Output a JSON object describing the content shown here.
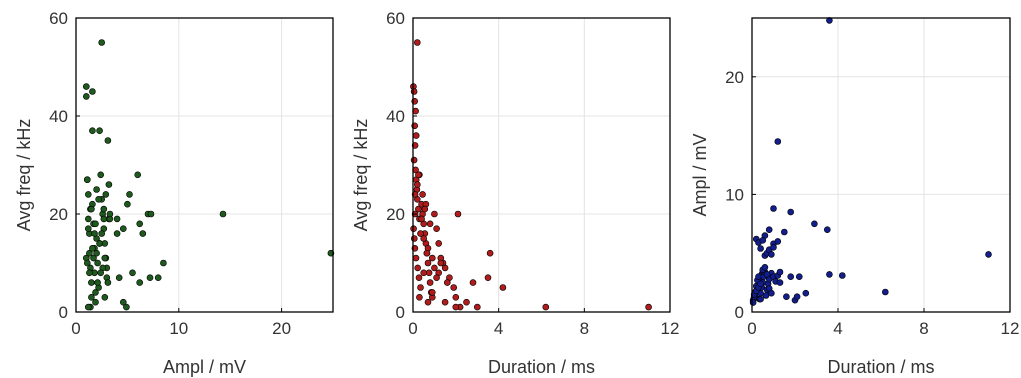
{
  "chart_data": [
    {
      "type": "scatter",
      "xlabel": "Ampl / mV",
      "ylabel": "Avg freq / kHz",
      "xlim": [
        0,
        25
      ],
      "ylim": [
        0,
        60
      ],
      "xticks": [
        0,
        10,
        20
      ],
      "yticks": [
        0,
        20,
        40,
        60
      ],
      "grid": true,
      "color": "#1e5a1e",
      "x": [
        1.0,
        1.0,
        1.1,
        1.2,
        1.2,
        1.3,
        1.3,
        1.4,
        1.5,
        1.5,
        1.6,
        1.6,
        1.7,
        1.8,
        1.8,
        1.9,
        2.0,
        2.0,
        2.1,
        2.2,
        2.3,
        2.4,
        2.5,
        2.6,
        2.7,
        2.8,
        2.9,
        3.0,
        3.1,
        3.2,
        1.1,
        1.4,
        1.9,
        2.3,
        2.7,
        3.0,
        3.3,
        1.2,
        1.7,
        2.1,
        2.6,
        2.9,
        3.3,
        1.0,
        1.5,
        2.0,
        2.4,
        2.8,
        1.3,
        1.8,
        2.2,
        2.7,
        3.2,
        1.6,
        2.5,
        1.1,
        1.9,
        2.8,
        1.4,
        2.3,
        3.1,
        4.0,
        4.2,
        4.6,
        5.0,
        5.2,
        5.5,
        6.0,
        6.2,
        6.5,
        7.0,
        7.2,
        7.3,
        8.0,
        8.5,
        4.6,
        1.2,
        1.6,
        2.5,
        14.3,
        24.8,
        4.9,
        6.2,
        4.0
      ],
      "y": [
        46,
        44,
        27,
        24,
        19,
        16,
        12,
        9,
        6,
        3,
        37,
        22,
        18,
        13,
        8,
        2,
        25,
        15,
        10,
        5,
        37,
        28,
        23,
        20,
        17,
        14,
        11,
        7,
        35,
        19,
        27,
        21,
        18,
        14,
        21,
        9,
        19,
        17,
        11,
        6,
        9,
        24,
        20,
        11,
        21,
        12,
        8,
        3,
        8,
        16,
        23,
        19,
        26,
        13,
        16,
        10,
        4,
        11,
        1,
        14,
        6,
        19,
        7,
        17,
        22,
        24,
        8,
        28,
        18,
        16,
        20,
        7,
        20,
        7,
        10,
        2,
        1,
        45,
        55,
        20,
        12,
        1,
        6,
        16
      ]
    },
    {
      "type": "scatter",
      "xlabel": "Duration / ms",
      "ylabel": "Avg freq / kHz",
      "xlim": [
        0,
        12
      ],
      "ylim": [
        0,
        60
      ],
      "xticks": [
        0,
        4,
        8,
        12
      ],
      "yticks": [
        0,
        20,
        40,
        60
      ],
      "grid": true,
      "color": "#b01c1c",
      "x": [
        0.02,
        0.05,
        0.08,
        0.1,
        0.12,
        0.15,
        0.18,
        0.2,
        0.25,
        0.3,
        0.03,
        0.06,
        0.09,
        0.14,
        0.22,
        0.28,
        0.35,
        0.4,
        0.45,
        0.5,
        0.55,
        0.6,
        0.65,
        0.7,
        0.75,
        0.8,
        0.85,
        0.9,
        1.0,
        1.1,
        1.2,
        1.3,
        1.5,
        1.7,
        1.9,
        2.0,
        2.1,
        2.2,
        2.5,
        2.8,
        3.0,
        3.5,
        3.6,
        4.2,
        0.1,
        0.2,
        0.3,
        0.4,
        0.5,
        0.6,
        0.7,
        0.8,
        0.9,
        1.0,
        1.2,
        1.4,
        1.6,
        0.05,
        0.15,
        0.25,
        0.35,
        0.45,
        0.55,
        0.65,
        0.3,
        0.5,
        0.7,
        0.9,
        1.1,
        1.3,
        1.5,
        2.0,
        6.2,
        11.0,
        0.2,
        0.12,
        0.08,
        0.1
      ],
      "y": [
        46,
        45,
        38,
        34,
        29,
        27,
        25,
        23,
        21,
        19,
        17,
        15,
        13,
        11,
        9,
        7,
        5,
        22,
        20,
        18,
        16,
        14,
        12,
        10,
        8,
        6,
        4,
        3,
        20,
        17,
        14,
        11,
        9,
        7,
        5,
        3,
        20,
        1,
        2,
        6,
        1,
        7,
        12,
        5,
        24,
        26,
        28,
        19,
        15,
        22,
        13,
        18,
        11,
        9,
        8,
        10,
        6,
        31,
        36,
        28,
        16,
        24,
        21,
        12,
        3,
        8,
        2,
        4,
        7,
        10,
        2,
        1,
        1,
        1,
        55,
        41,
        43,
        20
      ]
    },
    {
      "type": "scatter",
      "xlabel": "Duration / ms",
      "ylabel": "Ampl / mV",
      "xlim": [
        0,
        12
      ],
      "ylim": [
        0,
        25
      ],
      "xticks": [
        0,
        4,
        8,
        12
      ],
      "yticks": [
        0,
        10,
        20
      ],
      "grid": true,
      "color": "#121e8c",
      "x": [
        0.05,
        0.1,
        0.15,
        0.2,
        0.25,
        0.3,
        0.35,
        0.4,
        0.45,
        0.5,
        0.05,
        0.1,
        0.15,
        0.2,
        0.25,
        0.3,
        0.35,
        0.4,
        0.45,
        0.5,
        0.55,
        0.6,
        0.65,
        0.7,
        0.75,
        0.8,
        0.9,
        1.0,
        1.1,
        1.2,
        1.3,
        0.1,
        0.2,
        0.3,
        0.4,
        0.5,
        0.6,
        0.7,
        0.8,
        0.9,
        0.2,
        0.4,
        0.6,
        0.8,
        1.0,
        1.2,
        1.5,
        1.8,
        2.0,
        2.1,
        2.2,
        2.5,
        2.9,
        3.5,
        3.6,
        4.2,
        6.2,
        11.0,
        0.6,
        0.7,
        0.8,
        0.9,
        1.0,
        1.6,
        1.8,
        1.0,
        1.2,
        0.3,
        0.5,
        0.4,
        3.6,
        1.3
      ],
      "y": [
        1.0,
        1.2,
        1.5,
        1.8,
        2.0,
        2.3,
        2.6,
        2.9,
        3.2,
        3.5,
        0.8,
        1.3,
        1.7,
        2.2,
        2.7,
        3.0,
        1.1,
        1.6,
        2.1,
        2.5,
        3.0,
        3.4,
        1.4,
        1.9,
        2.4,
        2.8,
        3.3,
        3.0,
        2.6,
        3.1,
        3.4,
        1.5,
        1.8,
        2.1,
        2.4,
        3.6,
        3.8,
        3.2,
        2.0,
        1.6,
        6.2,
        5.4,
        6.5,
        7.0,
        5.8,
        6.0,
        6.8,
        8.5,
        1.0,
        1.3,
        3.0,
        1.6,
        7.5,
        7.0,
        3.2,
        3.1,
        1.7,
        4.9,
        4.8,
        5.0,
        5.3,
        4.9,
        5.5,
        1.3,
        3.0,
        8.8,
        14.5,
        5.9,
        6.1,
        1.1,
        24.8,
        2.5
      ]
    }
  ]
}
